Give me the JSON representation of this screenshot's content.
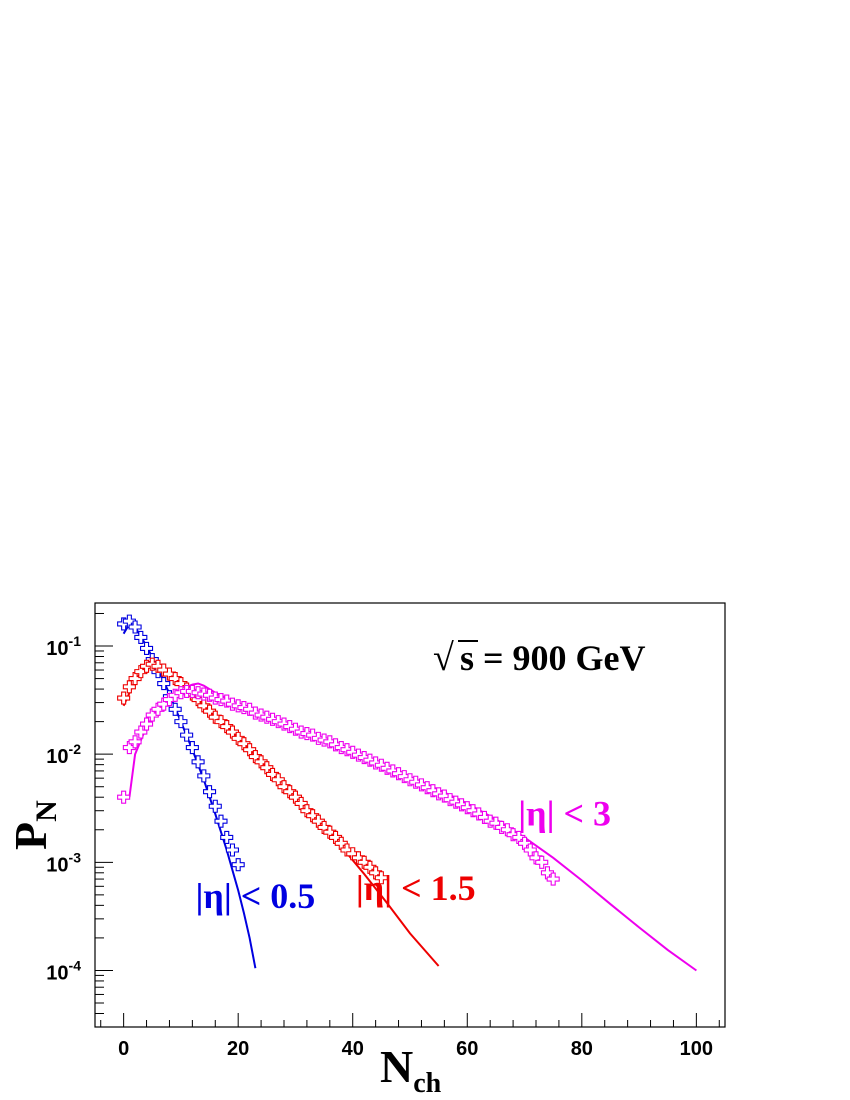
{
  "chart_data": {
    "type": "scatter",
    "title": "",
    "annotation": {
      "sqrt_symbol": "√",
      "text": "s = 900 GeV"
    },
    "xlabel": {
      "main": "N",
      "sub": "ch"
    },
    "ylabel": {
      "main": "P",
      "sub": "N"
    },
    "xlim": [
      -5,
      105
    ],
    "ylim": [
      3e-05,
      0.25
    ],
    "yscale": "log",
    "x_ticks": [
      0,
      20,
      40,
      60,
      80,
      100
    ],
    "x_tick_labels": [
      "0",
      "20",
      "40",
      "60",
      "80",
      "100"
    ],
    "y_ticks": [
      0.1,
      0.01,
      0.001,
      0.0001
    ],
    "y_tick_labels": [
      {
        "base": "10",
        "exp": "-1"
      },
      {
        "base": "10",
        "exp": "-2"
      },
      {
        "base": "10",
        "exp": "-3"
      },
      {
        "base": "10",
        "exp": "-4"
      }
    ],
    "grid": false,
    "series": [
      {
        "name": "|η| < 0.5",
        "color": "#0000e0",
        "label_pos": [
          23,
          0.00038
        ],
        "points": [
          [
            0,
            0.16
          ],
          [
            1,
            0.17
          ],
          [
            2,
            0.15
          ],
          [
            3,
            0.12
          ],
          [
            4,
            0.095
          ],
          [
            5,
            0.075
          ],
          [
            6,
            0.058
          ],
          [
            7,
            0.045
          ],
          [
            8,
            0.034
          ],
          [
            9,
            0.026
          ],
          [
            10,
            0.02
          ],
          [
            11,
            0.015
          ],
          [
            12,
            0.0115
          ],
          [
            13,
            0.0085
          ],
          [
            14,
            0.0063
          ],
          [
            15,
            0.0045
          ],
          [
            16,
            0.0033
          ],
          [
            17,
            0.0024
          ],
          [
            18,
            0.0017
          ],
          [
            19,
            0.0013
          ],
          [
            20,
            0.00095
          ]
        ],
        "fit": [
          [
            0,
            0.13
          ],
          [
            1,
            0.16
          ],
          [
            2,
            0.15
          ],
          [
            4,
            0.1
          ],
          [
            6,
            0.062
          ],
          [
            8,
            0.036
          ],
          [
            10,
            0.02
          ],
          [
            12,
            0.011
          ],
          [
            14,
            0.0058
          ],
          [
            16,
            0.0028
          ],
          [
            18,
            0.0013
          ],
          [
            20,
            0.00055
          ],
          [
            21,
            0.00034
          ],
          [
            22,
            0.0002
          ],
          [
            23,
            0.000105
          ]
        ]
      },
      {
        "name": "|η| < 1.5",
        "color": "#ee0000",
        "label_pos": [
          51,
          0.00045
        ],
        "points": [
          [
            0,
            0.033
          ],
          [
            1,
            0.042
          ],
          [
            2,
            0.05
          ],
          [
            3,
            0.058
          ],
          [
            4,
            0.065
          ],
          [
            5,
            0.068
          ],
          [
            6,
            0.065
          ],
          [
            7,
            0.06
          ],
          [
            8,
            0.055
          ],
          [
            9,
            0.05
          ],
          [
            10,
            0.045
          ],
          [
            11,
            0.04
          ],
          [
            12,
            0.036
          ],
          [
            13,
            0.032
          ],
          [
            14,
            0.028
          ],
          [
            15,
            0.025
          ],
          [
            16,
            0.022
          ],
          [
            17,
            0.02
          ],
          [
            18,
            0.018
          ],
          [
            19,
            0.016
          ],
          [
            20,
            0.014
          ],
          [
            21,
            0.0125
          ],
          [
            22,
            0.011
          ],
          [
            23,
            0.0095
          ],
          [
            24,
            0.0085
          ],
          [
            25,
            0.0075
          ],
          [
            26,
            0.0065
          ],
          [
            27,
            0.0058
          ],
          [
            28,
            0.005
          ],
          [
            29,
            0.0045
          ],
          [
            30,
            0.004
          ],
          [
            31,
            0.0035
          ],
          [
            32,
            0.003
          ],
          [
            33,
            0.0027
          ],
          [
            34,
            0.0024
          ],
          [
            35,
            0.0021
          ],
          [
            36,
            0.0019
          ],
          [
            37,
            0.0017
          ],
          [
            38,
            0.0015
          ],
          [
            39,
            0.0013
          ],
          [
            40,
            0.0012
          ],
          [
            41,
            0.0011
          ],
          [
            42,
            0.001
          ],
          [
            43,
            0.0009
          ],
          [
            44,
            0.0008
          ],
          [
            45,
            0.00072
          ]
        ],
        "fit": [
          [
            0,
            0.028
          ],
          [
            2,
            0.048
          ],
          [
            4,
            0.066
          ],
          [
            5,
            0.07
          ],
          [
            6,
            0.066
          ],
          [
            8,
            0.052
          ],
          [
            10,
            0.043
          ],
          [
            14,
            0.028
          ],
          [
            18,
            0.018
          ],
          [
            22,
            0.011
          ],
          [
            26,
            0.0068
          ],
          [
            30,
            0.0042
          ],
          [
            34,
            0.0025
          ],
          [
            38,
            0.0014
          ],
          [
            42,
            0.00078
          ],
          [
            46,
            0.00042
          ],
          [
            50,
            0.00022
          ],
          [
            55,
            0.00011
          ]
        ]
      },
      {
        "name": "|η| < 3",
        "color": "#ee00ee",
        "label_pos": [
          77,
          0.0022
        ],
        "points": [
          [
            0,
            0.004
          ],
          [
            1,
            0.0115
          ],
          [
            2,
            0.013
          ],
          [
            3,
            0.016
          ],
          [
            4,
            0.019
          ],
          [
            5,
            0.023
          ],
          [
            6,
            0.026
          ],
          [
            7,
            0.029
          ],
          [
            8,
            0.032
          ],
          [
            9,
            0.035
          ],
          [
            10,
            0.037
          ],
          [
            11,
            0.038
          ],
          [
            12,
            0.038
          ],
          [
            13,
            0.037
          ],
          [
            14,
            0.036
          ],
          [
            15,
            0.035
          ],
          [
            16,
            0.033
          ],
          [
            17,
            0.032
          ],
          [
            18,
            0.031
          ],
          [
            19,
            0.029
          ],
          [
            20,
            0.028
          ],
          [
            21,
            0.027
          ],
          [
            22,
            0.026
          ],
          [
            23,
            0.024
          ],
          [
            24,
            0.023
          ],
          [
            25,
            0.022
          ],
          [
            26,
            0.021
          ],
          [
            27,
            0.02
          ],
          [
            28,
            0.019
          ],
          [
            29,
            0.018
          ],
          [
            30,
            0.017
          ],
          [
            31,
            0.016
          ],
          [
            32,
            0.0155
          ],
          [
            33,
            0.015
          ],
          [
            34,
            0.014
          ],
          [
            35,
            0.0135
          ],
          [
            36,
            0.013
          ],
          [
            37,
            0.0122
          ],
          [
            38,
            0.0115
          ],
          [
            39,
            0.011
          ],
          [
            40,
            0.0104
          ],
          [
            41,
            0.0098
          ],
          [
            42,
            0.0093
          ],
          [
            43,
            0.0088
          ],
          [
            44,
            0.0083
          ],
          [
            45,
            0.0079
          ],
          [
            46,
            0.0074
          ],
          [
            47,
            0.007
          ],
          [
            48,
            0.0066
          ],
          [
            49,
            0.0062
          ],
          [
            50,
            0.0058
          ],
          [
            51,
            0.0055
          ],
          [
            52,
            0.0052
          ],
          [
            53,
            0.0049
          ],
          [
            54,
            0.0046
          ],
          [
            55,
            0.0043
          ],
          [
            56,
            0.0041
          ],
          [
            57,
            0.0038
          ],
          [
            58,
            0.0036
          ],
          [
            59,
            0.0034
          ],
          [
            60,
            0.0032
          ],
          [
            61,
            0.003
          ],
          [
            62,
            0.0028
          ],
          [
            63,
            0.0026
          ],
          [
            64,
            0.0024
          ],
          [
            65,
            0.0023
          ],
          [
            66,
            0.0021
          ],
          [
            67,
            0.002
          ],
          [
            68,
            0.0018
          ],
          [
            69,
            0.0017
          ],
          [
            70,
            0.0015
          ],
          [
            71,
            0.0013
          ],
          [
            72,
            0.0011
          ],
          [
            73,
            0.001
          ],
          [
            74,
            0.0008
          ],
          [
            75,
            0.0007
          ]
        ],
        "fit": [
          [
            1,
            0.004
          ],
          [
            2,
            0.01
          ],
          [
            4,
            0.018
          ],
          [
            6,
            0.026
          ],
          [
            8,
            0.034
          ],
          [
            10,
            0.04
          ],
          [
            12,
            0.044
          ],
          [
            13,
            0.045
          ],
          [
            14,
            0.043
          ],
          [
            16,
            0.037
          ],
          [
            18,
            0.033
          ],
          [
            20,
            0.029
          ],
          [
            25,
            0.022
          ],
          [
            30,
            0.017
          ],
          [
            35,
            0.0135
          ],
          [
            40,
            0.0105
          ],
          [
            45,
            0.0082
          ],
          [
            50,
            0.0062
          ],
          [
            55,
            0.0047
          ],
          [
            60,
            0.0035
          ],
          [
            65,
            0.0025
          ],
          [
            70,
            0.0017
          ],
          [
            75,
            0.0011
          ],
          [
            80,
            0.00068
          ],
          [
            85,
            0.00041
          ],
          [
            90,
            0.00025
          ],
          [
            95,
            0.000155
          ],
          [
            100,
            0.0001
          ]
        ]
      }
    ]
  }
}
